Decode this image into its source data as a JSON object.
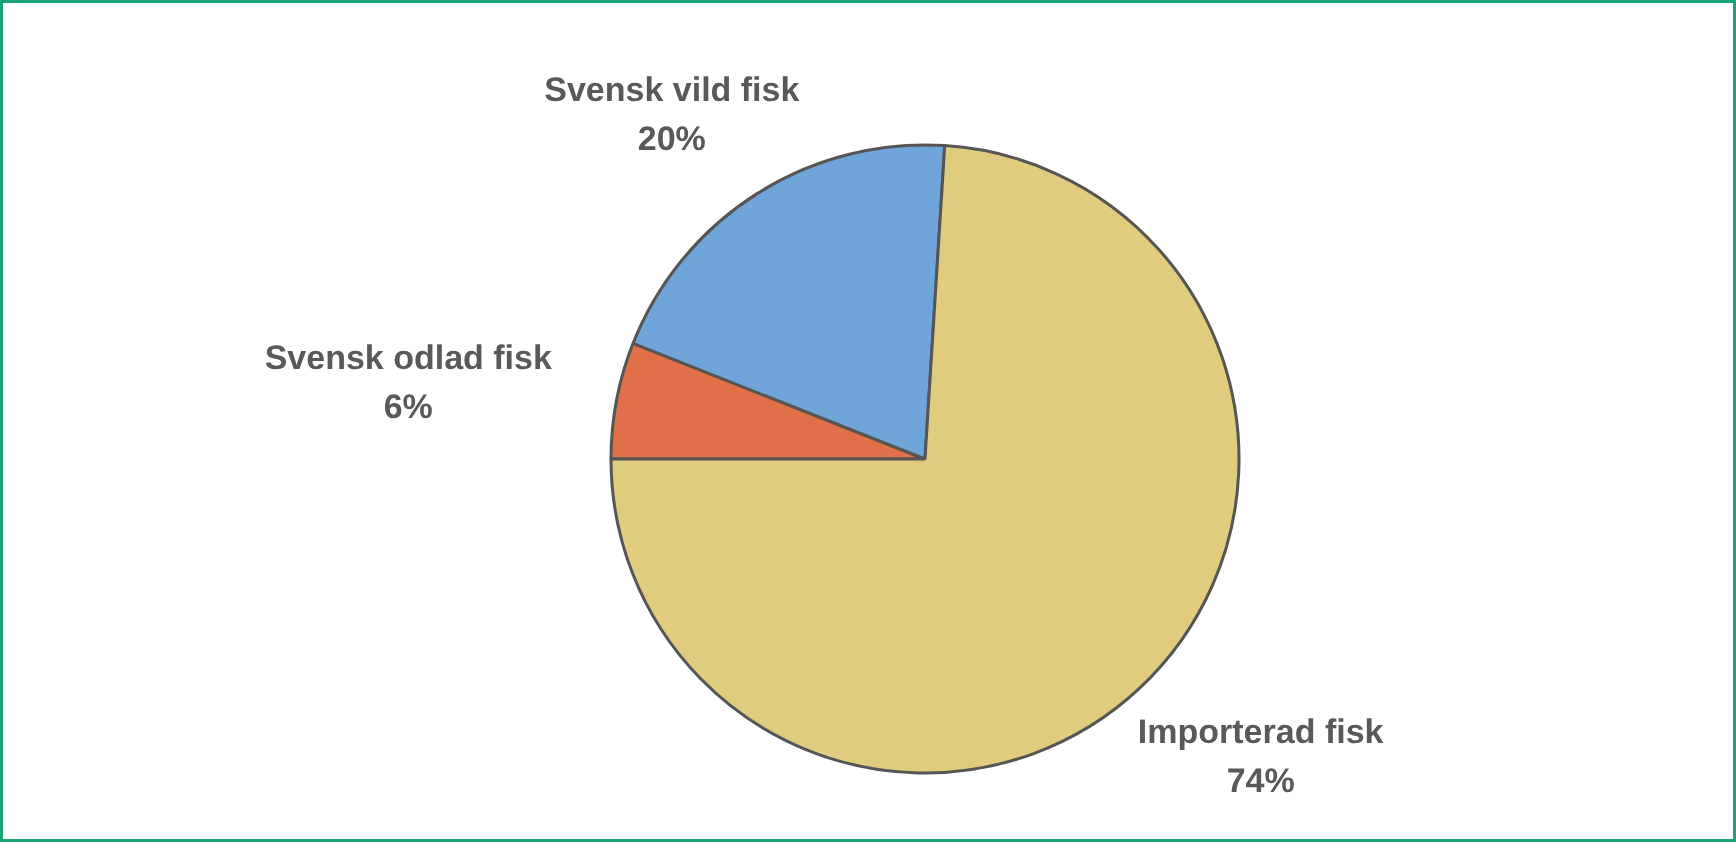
{
  "chart_data": {
    "type": "pie",
    "categories": [
      "Svensk odlad fisk",
      "Svensk vild fisk",
      "Importerad fisk"
    ],
    "values": [
      6,
      20,
      74
    ],
    "colors": [
      "#e0704a",
      "#6fa5d8",
      "#dfcc7f"
    ],
    "value_labels": [
      "6%",
      "20%",
      "74%"
    ]
  }
}
